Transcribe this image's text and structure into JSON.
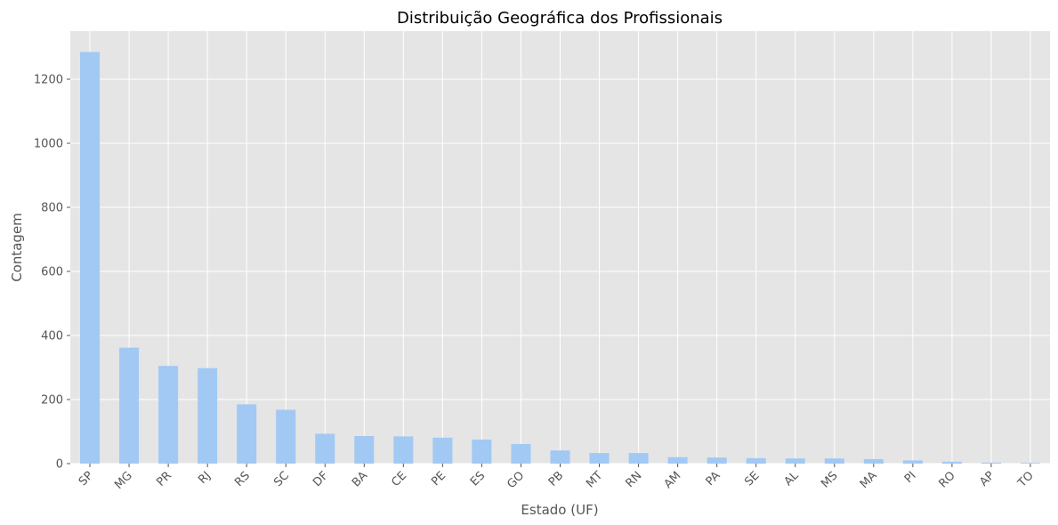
{
  "chart_data": {
    "type": "bar",
    "title": "Distribuição Geográfica dos Profissionais",
    "xlabel": "Estado (UF)",
    "ylabel": "Contagem",
    "categories": [
      "SP",
      "MG",
      "PR",
      "RJ",
      "RS",
      "SC",
      "DF",
      "BA",
      "CE",
      "PE",
      "ES",
      "GO",
      "PB",
      "MT",
      "RN",
      "AM",
      "PA",
      "SE",
      "AL",
      "MS",
      "MA",
      "PI",
      "RO",
      "AP",
      "TO"
    ],
    "values": [
      1285,
      362,
      305,
      298,
      185,
      168,
      93,
      86,
      85,
      81,
      75,
      61,
      41,
      33,
      33,
      20,
      19,
      17,
      16,
      16,
      14,
      10,
      6,
      3,
      2
    ],
    "ylim": [
      0,
      1350
    ],
    "yticks": [
      0,
      200,
      400,
      600,
      800,
      1000,
      1200
    ],
    "grid": true,
    "colors": {
      "bar": "#a1c9f4",
      "plot_background": "#e5e5e5",
      "grid": "#ffffff"
    }
  }
}
